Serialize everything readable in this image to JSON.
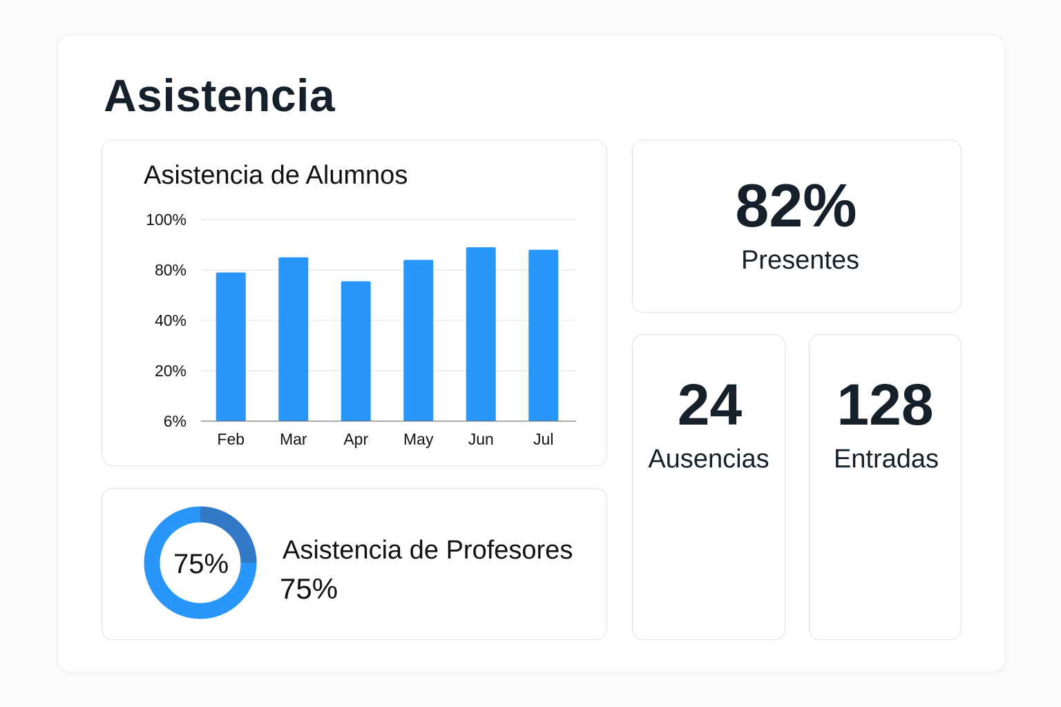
{
  "page_title": "Asistencia",
  "students_chart": {
    "title": "Asistencia de Alumnos"
  },
  "chart_data": {
    "type": "bar",
    "title": "Asistencia de Alumnos",
    "categories": [
      "Feb",
      "Mar",
      "Apr",
      "May",
      "Jun",
      "Jul"
    ],
    "values": [
      78,
      85,
      71,
      84,
      89,
      88
    ],
    "y_ticks": [
      "6%",
      "20%",
      "40%",
      "80%",
      "100%"
    ],
    "y_tick_values": [
      6,
      20,
      40,
      80,
      100
    ],
    "ylim": [
      6,
      100
    ],
    "grid": true,
    "bar_color": "#2896fa"
  },
  "teachers": {
    "title": "Asistencia de Profesores",
    "value_label": "75%",
    "donut_center_label": "75%",
    "fraction": 0.75,
    "main_color": "#2896fa",
    "remainder_color": "#3478c8"
  },
  "stats": {
    "present": {
      "value": "82%",
      "label": "Presentes"
    },
    "absences": {
      "value": "24",
      "label": "Ausencias"
    },
    "entries": {
      "value": "128",
      "label": "Entradas"
    }
  }
}
